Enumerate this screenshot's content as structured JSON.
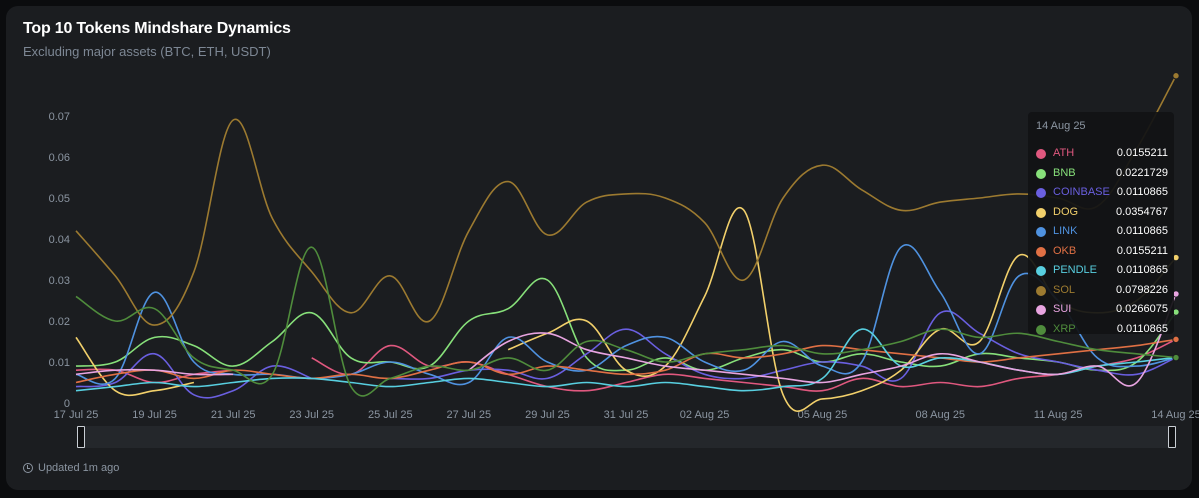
{
  "header": {
    "title": "Top 10 Tokens Mindshare Dynamics",
    "subtitle": "Excluding major assets (BTC, ETH, USDT)"
  },
  "footer": {
    "updated": "Updated 1m ago"
  },
  "tooltip": {
    "date": "14 Aug 25",
    "rows": [
      {
        "name": "ATH",
        "value": "0.0155211"
      },
      {
        "name": "BNB",
        "value": "0.0221729"
      },
      {
        "name": "COINBASE",
        "value": "0.0110865"
      },
      {
        "name": "DOG",
        "value": "0.0354767"
      },
      {
        "name": "LINK",
        "value": "0.0110865"
      },
      {
        "name": "OKB",
        "value": "0.0155211"
      },
      {
        "name": "PENDLE",
        "value": "0.0110865"
      },
      {
        "name": "SOL",
        "value": "0.0798226"
      },
      {
        "name": "SUI",
        "value": "0.0266075"
      },
      {
        "name": "XRP",
        "value": "0.0110865"
      }
    ]
  },
  "chart_data": {
    "type": "line",
    "title": "Top 10 Tokens Mindshare Dynamics",
    "subtitle": "Excluding major assets (BTC, ETH, USDT)",
    "x_range": [
      "17 Jul 25",
      "14 Aug 25"
    ],
    "x_ticks": [
      "17 Jul 25",
      "19 Jul 25",
      "21 Jul 25",
      "23 Jul 25",
      "25 Jul 25",
      "27 Jul 25",
      "29 Jul 25",
      "31 Jul 25",
      "02 Aug 25",
      "05 Aug 25",
      "08 Aug 25",
      "11 Aug 25",
      "14 Aug 25"
    ],
    "x_tick_day": [
      0,
      2,
      4,
      6,
      8,
      10,
      12,
      14,
      16,
      19,
      22,
      25,
      28
    ],
    "y_ticks": [
      0,
      0.01,
      0.02,
      0.03,
      0.04,
      0.05,
      0.06,
      0.07
    ],
    "ylim": [
      0,
      0.07
    ],
    "grid": false,
    "legend": "tooltip-right",
    "series": [
      {
        "name": "ATH",
        "color": "#e0587f",
        "values": [
          0.008,
          0.008,
          0.005,
          0.007,
          0.008,
          null,
          0.011,
          0.007,
          0.014,
          0.009,
          0.01,
          0.007,
          0.004,
          0.003,
          0.005,
          0.007,
          0.006,
          0.005,
          0.004,
          0.003,
          0.006,
          0.004,
          0.005,
          0.004,
          0.006,
          0.007,
          0.009,
          0.011,
          0.0155211
        ]
      },
      {
        "name": "BNB",
        "color": "#87e07a",
        "values": [
          0.009,
          0.01,
          0.016,
          0.014,
          0.009,
          0.015,
          0.022,
          0.011,
          0.01,
          0.009,
          0.02,
          0.023,
          0.03,
          0.011,
          0.008,
          0.011,
          0.008,
          0.011,
          0.013,
          0.01,
          0.012,
          0.01,
          0.009,
          0.012,
          0.011,
          0.01,
          0.008,
          0.01,
          0.0221729
        ]
      },
      {
        "name": "COINBASE",
        "color": "#6a5fe0",
        "values": [
          0.004,
          0.005,
          0.012,
          0.002,
          0.003,
          0.009,
          0.006,
          null,
          0.006,
          0.006,
          0.008,
          0.008,
          0.006,
          0.012,
          0.018,
          0.012,
          0.007,
          0.006,
          0.008,
          0.01,
          0.009,
          0.006,
          0.022,
          0.017,
          0.012,
          0.01,
          0.008,
          0.007,
          0.0110865
        ]
      },
      {
        "name": "DOG",
        "color": "#f2d06b",
        "values": [
          0.016,
          0.003,
          0.003,
          0.005,
          null,
          null,
          null,
          null,
          null,
          null,
          null,
          0.013,
          0.017,
          0.02,
          0.008,
          0.009,
          0.026,
          0.047,
          0.002,
          0.001,
          0.003,
          0.008,
          0.018,
          0.015,
          0.036,
          0.025,
          0.022,
          0.025,
          0.0354767
        ]
      },
      {
        "name": "LINK",
        "color": "#4f92e0",
        "values": [
          0.007,
          0.006,
          0.027,
          0.01,
          0.007,
          0.007,
          0.006,
          0.007,
          0.01,
          0.007,
          0.005,
          0.016,
          0.01,
          0.008,
          0.014,
          0.016,
          0.01,
          0.008,
          0.015,
          0.009,
          0.01,
          0.038,
          0.027,
          0.012,
          0.031,
          0.025,
          0.011,
          0.009,
          0.0110865
        ]
      },
      {
        "name": "OKB",
        "color": "#e07044",
        "values": [
          0.005,
          0.007,
          0.008,
          0.006,
          0.008,
          0.007,
          0.006,
          0.007,
          0.006,
          0.008,
          0.01,
          0.007,
          0.009,
          0.008,
          0.007,
          0.008,
          0.012,
          0.011,
          0.012,
          0.014,
          0.013,
          0.012,
          0.011,
          0.01,
          0.011,
          0.012,
          0.013,
          0.014,
          0.0155211
        ]
      },
      {
        "name": "PENDLE",
        "color": "#58cfe0",
        "values": [
          0.003,
          0.004,
          0.005,
          0.004,
          0.005,
          0.006,
          0.006,
          0.005,
          0.004,
          0.005,
          0.006,
          0.005,
          0.004,
          0.005,
          0.004,
          0.005,
          0.004,
          0.003,
          0.004,
          0.006,
          0.018,
          0.009,
          0.011,
          0.01,
          0.008,
          0.007,
          0.009,
          0.01,
          0.0110865
        ]
      },
      {
        "name": "SOL",
        "color": "#9c7a30",
        "values": [
          0.042,
          0.031,
          0.019,
          0.032,
          0.069,
          0.045,
          0.032,
          0.022,
          0.031,
          0.02,
          0.042,
          0.054,
          0.041,
          0.049,
          0.051,
          0.05,
          0.044,
          0.03,
          0.05,
          0.058,
          0.052,
          0.047,
          0.049,
          0.05,
          0.051,
          0.05,
          0.048,
          0.062,
          0.0798226
        ]
      },
      {
        "name": "SUI",
        "color": "#e8a4e0",
        "values": [
          0.007,
          0.008,
          0.008,
          0.007,
          0.007,
          null,
          null,
          null,
          null,
          null,
          0.008,
          0.015,
          0.017,
          0.013,
          0.011,
          0.009,
          0.008,
          0.007,
          0.006,
          0.005,
          0.007,
          0.009,
          0.012,
          0.01,
          0.008,
          0.007,
          0.009,
          0.005,
          0.0266075
        ]
      },
      {
        "name": "XRP",
        "color": "#4f8c3c",
        "values": [
          0.026,
          0.02,
          0.023,
          0.011,
          0.008,
          0.007,
          0.038,
          0.004,
          0.006,
          0.009,
          0.008,
          0.011,
          0.008,
          0.015,
          0.013,
          0.01,
          0.012,
          0.013,
          0.014,
          0.012,
          0.013,
          0.015,
          0.018,
          0.016,
          0.017,
          0.015,
          0.013,
          0.012,
          0.0110865
        ]
      }
    ]
  }
}
